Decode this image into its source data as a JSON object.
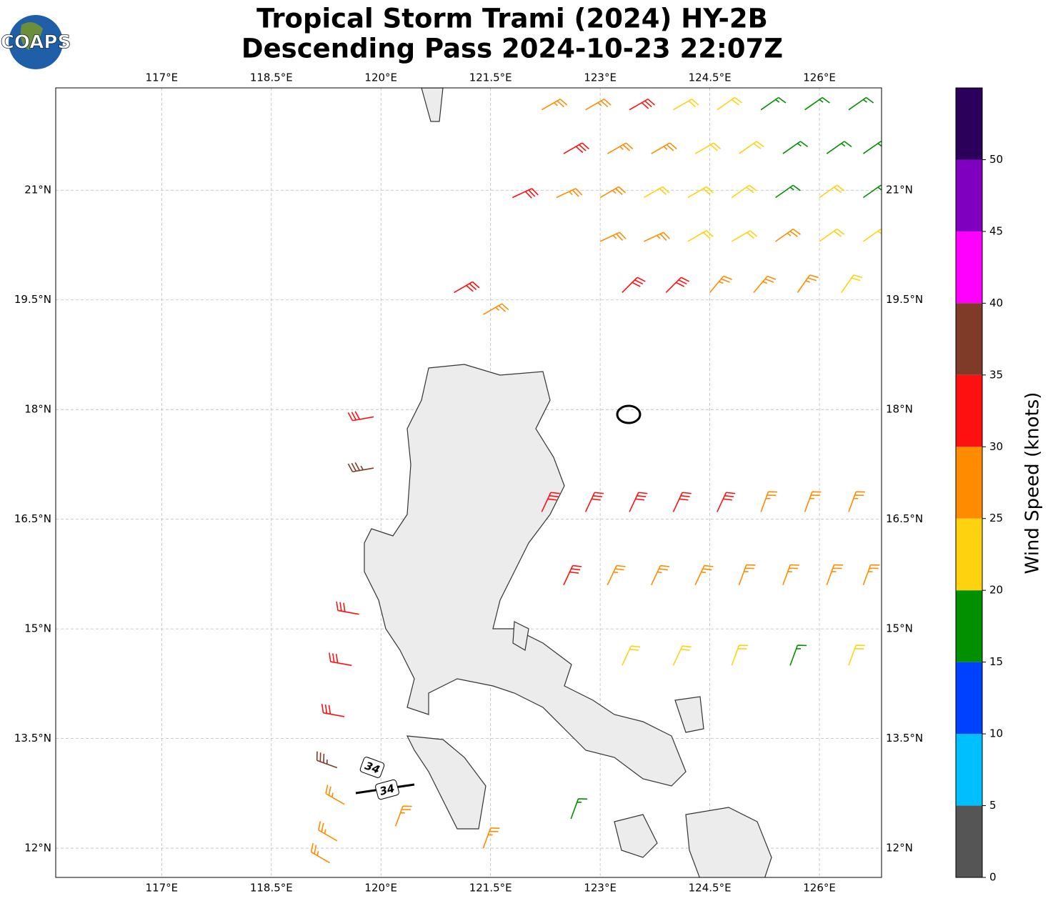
{
  "header": {
    "title_line1": "Tropical Storm Trami (2024) HY-2B",
    "title_line2": "Descending Pass 2024-10-23 22:07Z",
    "logo": "COAPS"
  },
  "map": {
    "xlim": [
      115.55,
      126.85
    ],
    "ylim": [
      11.6,
      22.4
    ],
    "xticks": [
      {
        "value": 117,
        "label": "117°E"
      },
      {
        "value": 118.5,
        "label": "118.5°E"
      },
      {
        "value": 120,
        "label": "120°E"
      },
      {
        "value": 121.5,
        "label": "121.5°E"
      },
      {
        "value": 123,
        "label": "123°E"
      },
      {
        "value": 124.5,
        "label": "124.5°E"
      },
      {
        "value": 126,
        "label": "126°E"
      }
    ],
    "yticks": [
      {
        "value": 12,
        "label": "12°N"
      },
      {
        "value": 13.5,
        "label": "13.5°N"
      },
      {
        "value": 15,
        "label": "15°N"
      },
      {
        "value": 16.5,
        "label": "16.5°N"
      },
      {
        "value": 18,
        "label": "18°N"
      },
      {
        "value": 19.5,
        "label": "19.5°N"
      },
      {
        "value": 21,
        "label": "21°N"
      }
    ],
    "grid": true,
    "contour_labels": [
      "34",
      "34"
    ],
    "barbs": {
      "lon": [
        122.2,
        122.8,
        123.4,
        124.0,
        124.6,
        125.2,
        125.8,
        126.4,
        122.5,
        123.1,
        123.7,
        124.3,
        124.9,
        125.5,
        126.1,
        126.6,
        121.8,
        122.4,
        123.0,
        123.6,
        124.2,
        124.8,
        125.4,
        126.0,
        126.6,
        121.0,
        121.4,
        123.0,
        123.6,
        124.2,
        124.8,
        125.4,
        126.0,
        126.6,
        123.3,
        123.9,
        124.5,
        125.1,
        125.7,
        126.3,
        122.2,
        122.8,
        123.4,
        124.0,
        124.6,
        125.2,
        125.8,
        126.4,
        122.5,
        123.1,
        123.7,
        124.3,
        124.9,
        125.5,
        126.1,
        126.6,
        123.3,
        124.0,
        124.8,
        125.6,
        126.4,
        119.9,
        119.9,
        119.7,
        119.6,
        119.5,
        119.4,
        119.5,
        119.4,
        119.3,
        120.2,
        121.4,
        122.6
      ],
      "lat": [
        22.1,
        22.1,
        22.1,
        22.1,
        22.1,
        22.1,
        22.1,
        22.1,
        21.5,
        21.5,
        21.5,
        21.5,
        21.5,
        21.5,
        21.5,
        21.5,
        20.9,
        20.9,
        20.9,
        20.9,
        20.9,
        20.9,
        20.9,
        20.9,
        20.9,
        19.6,
        19.3,
        20.3,
        20.3,
        20.3,
        20.3,
        20.3,
        20.3,
        20.3,
        19.6,
        19.6,
        19.6,
        19.6,
        19.6,
        19.6,
        16.6,
        16.6,
        16.6,
        16.6,
        16.6,
        16.6,
        16.6,
        16.6,
        15.6,
        15.6,
        15.6,
        15.6,
        15.6,
        15.6,
        15.6,
        15.6,
        14.5,
        14.5,
        14.5,
        14.5,
        14.5,
        17.9,
        17.2,
        15.2,
        14.5,
        13.8,
        13.1,
        12.6,
        12.1,
        11.8,
        12.3,
        12.0,
        12.4
      ],
      "speed": [
        28,
        27,
        32,
        24,
        22,
        18,
        18,
        17,
        32,
        28,
        26,
        24,
        23,
        19,
        17,
        18,
        33,
        29,
        26,
        24,
        23,
        22,
        18,
        22,
        18,
        32,
        27,
        28,
        26,
        23,
        24,
        26,
        23,
        24,
        32,
        33,
        28,
        27,
        26,
        23,
        33,
        32,
        33,
        33,
        34,
        28,
        27,
        27,
        33,
        28,
        27,
        26,
        28,
        26,
        28,
        27,
        23,
        23,
        23,
        17,
        22,
        33,
        36,
        33,
        33,
        33,
        37,
        29,
        29,
        28,
        28,
        28,
        18
      ],
      "dir": [
        60,
        60,
        60,
        60,
        55,
        55,
        55,
        55,
        60,
        60,
        60,
        60,
        55,
        55,
        55,
        55,
        65,
        65,
        60,
        60,
        60,
        55,
        55,
        55,
        55,
        60,
        60,
        65,
        65,
        60,
        60,
        55,
        55,
        55,
        45,
        45,
        40,
        40,
        35,
        35,
        25,
        25,
        25,
        25,
        25,
        20,
        20,
        20,
        25,
        25,
        25,
        25,
        20,
        20,
        20,
        20,
        25,
        25,
        20,
        20,
        20,
        260,
        260,
        280,
        280,
        280,
        290,
        300,
        300,
        300,
        20,
        20,
        20
      ]
    },
    "colorbar": {
      "label": "Wind Speed (knots)",
      "bounds": [
        0,
        5,
        10,
        15,
        20,
        25,
        30,
        35,
        40,
        45,
        50,
        55
      ],
      "colors": [
        "#555555",
        "#00bfff",
        "#0040ff",
        "#009000",
        "#ffd20f",
        "#ff8c00",
        "#ff1010",
        "#7f3a28",
        "#ff00ff",
        "#8000c0",
        "#2a005a"
      ],
      "ticks": [
        0,
        5,
        10,
        15,
        20,
        25,
        30,
        35,
        40,
        45,
        50
      ]
    }
  }
}
